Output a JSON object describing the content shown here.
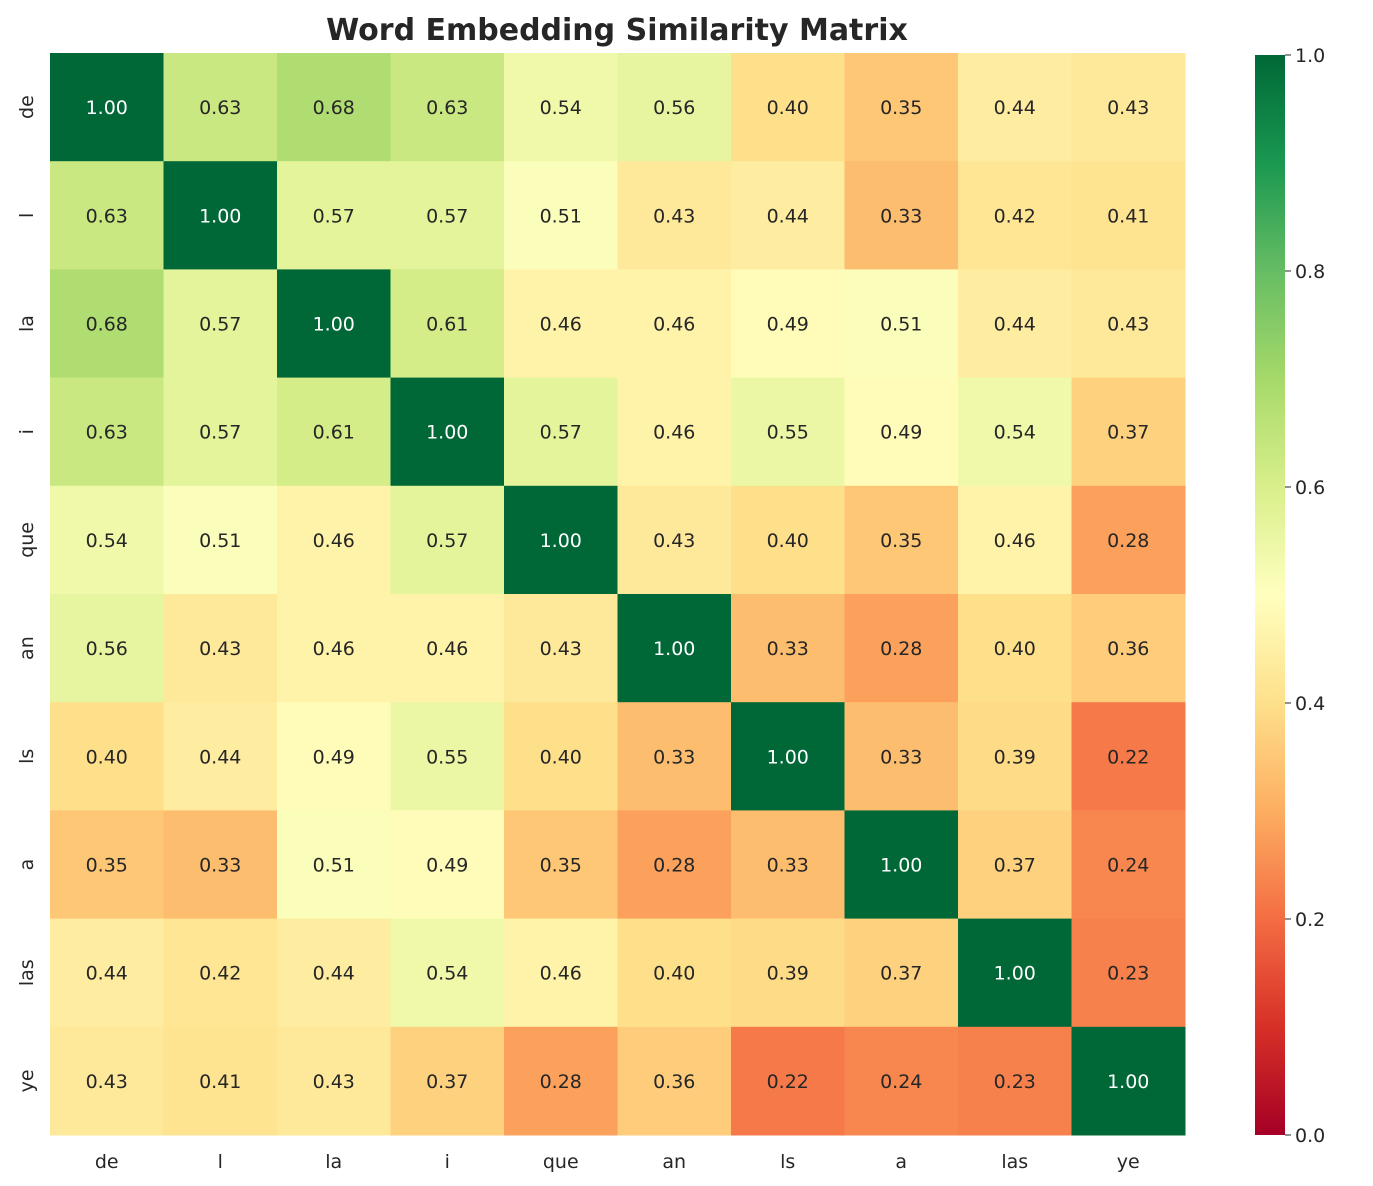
{
  "chart_data": {
    "type": "heatmap",
    "title": "Word Embedding Similarity Matrix",
    "x_labels": [
      "de",
      "l",
      "la",
      "i",
      "que",
      "an",
      "ls",
      "a",
      "las",
      "ye"
    ],
    "y_labels": [
      "de",
      "l",
      "la",
      "i",
      "que",
      "an",
      "ls",
      "a",
      "las",
      "ye"
    ],
    "values": [
      [
        1.0,
        0.63,
        0.68,
        0.63,
        0.54,
        0.56,
        0.4,
        0.35,
        0.44,
        0.43
      ],
      [
        0.63,
        1.0,
        0.57,
        0.57,
        0.51,
        0.43,
        0.44,
        0.33,
        0.42,
        0.41
      ],
      [
        0.68,
        0.57,
        1.0,
        0.61,
        0.46,
        0.46,
        0.49,
        0.51,
        0.44,
        0.43
      ],
      [
        0.63,
        0.57,
        0.61,
        1.0,
        0.57,
        0.46,
        0.55,
        0.49,
        0.54,
        0.37
      ],
      [
        0.54,
        0.51,
        0.46,
        0.57,
        1.0,
        0.43,
        0.4,
        0.35,
        0.46,
        0.28
      ],
      [
        0.56,
        0.43,
        0.46,
        0.46,
        0.43,
        1.0,
        0.33,
        0.28,
        0.4,
        0.36
      ],
      [
        0.4,
        0.44,
        0.49,
        0.55,
        0.4,
        0.33,
        1.0,
        0.33,
        0.39,
        0.22
      ],
      [
        0.35,
        0.33,
        0.51,
        0.49,
        0.35,
        0.28,
        0.33,
        1.0,
        0.37,
        0.24
      ],
      [
        0.44,
        0.42,
        0.44,
        0.54,
        0.46,
        0.4,
        0.39,
        0.37,
        1.0,
        0.23
      ],
      [
        0.43,
        0.41,
        0.43,
        0.37,
        0.28,
        0.36,
        0.22,
        0.24,
        0.23,
        1.0
      ]
    ],
    "colormap": "RdYlGn",
    "colormap_stops": [
      "#a50026",
      "#d73027",
      "#f46d43",
      "#fdae61",
      "#fee08b",
      "#ffffbf",
      "#d9ef8b",
      "#a6d96a",
      "#66bd63",
      "#1a9850",
      "#006837"
    ],
    "vmin": 0.0,
    "vmax": 1.0,
    "colorbar_ticks": [
      "0.0",
      "0.2",
      "0.4",
      "0.6",
      "0.8",
      "1.0"
    ],
    "annotation_format": "2 decimals",
    "grid": false
  }
}
